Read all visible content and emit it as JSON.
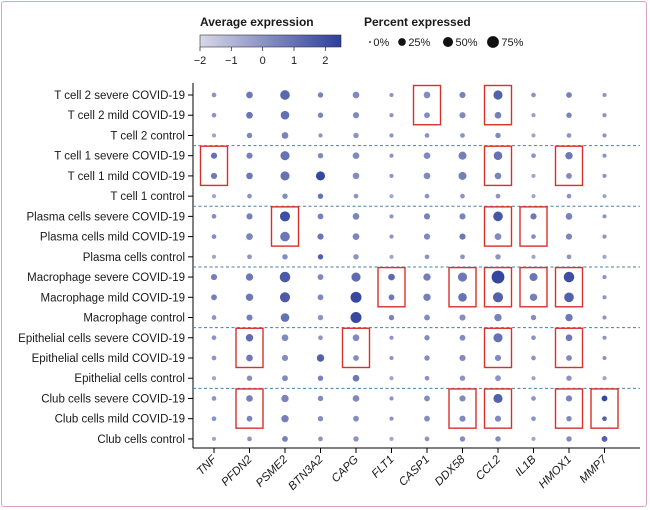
{
  "chart_data": {
    "type": "dot-plot",
    "legend": {
      "color_title": "Average expression",
      "color_ticks": [
        "−2",
        "−1",
        "0",
        "1",
        "2"
      ],
      "color_range": [
        -2,
        2.5
      ],
      "color_low": "#d8d8e8",
      "color_high": "#2c3f9a",
      "size_title": "Percent expressed",
      "size_items": [
        {
          "label": "0%",
          "pct": 0
        },
        {
          "label": "25%",
          "pct": 25
        },
        {
          "label": "50%",
          "pct": 50
        },
        {
          "label": "75%",
          "pct": 75
        }
      ]
    },
    "genes": [
      "TNF",
      "PFDN2",
      "PSME2",
      "BTN3A2",
      "CAPG",
      "FLT1",
      "CASP1",
      "DDX58",
      "CCL2",
      "IL1B",
      "HMOX1",
      "MMP7"
    ],
    "rows": [
      "T cell 2 severe COVID-19",
      "T cell 2 mild COVID-19",
      "T cell 2 control",
      "T cell 1 severe COVID-19",
      "T cell 1 mild COVID-19",
      "T cell 1 control",
      "Plasma cells severe COVID-19",
      "Plasma cells mild COVID-19",
      "Plasma cells control",
      "Macrophage severe COVID-19",
      "Macrophage mild COVID-19",
      "Macrophage control",
      "Epithelial cells severe COVID-19",
      "Epithelial cells mild COVID-19",
      "Epithelial cells control",
      "Club cells severe COVID-19",
      "Club cells mild COVID-19",
      "Club cells control"
    ],
    "pct_expressed": [
      [
        5,
        15,
        40,
        8,
        15,
        3,
        15,
        12,
        35,
        5,
        10,
        3
      ],
      [
        5,
        15,
        30,
        8,
        12,
        3,
        10,
        12,
        15,
        3,
        8,
        3
      ],
      [
        3,
        8,
        15,
        3,
        8,
        3,
        5,
        5,
        8,
        3,
        5,
        3
      ],
      [
        12,
        12,
        35,
        8,
        15,
        3,
        15,
        25,
        30,
        5,
        20,
        3
      ],
      [
        12,
        15,
        35,
        35,
        15,
        3,
        15,
        25,
        15,
        3,
        10,
        3
      ],
      [
        3,
        5,
        8,
        8,
        5,
        3,
        5,
        5,
        5,
        3,
        5,
        3
      ],
      [
        5,
        12,
        45,
        10,
        15,
        3,
        12,
        12,
        40,
        12,
        15,
        3
      ],
      [
        5,
        15,
        40,
        12,
        15,
        3,
        12,
        12,
        15,
        5,
        12,
        3
      ],
      [
        3,
        5,
        8,
        8,
        8,
        3,
        5,
        5,
        8,
        3,
        5,
        3
      ],
      [
        12,
        20,
        50,
        10,
        35,
        15,
        20,
        35,
        80,
        25,
        50,
        3
      ],
      [
        10,
        20,
        45,
        10,
        55,
        10,
        20,
        30,
        45,
        20,
        40,
        3
      ],
      [
        5,
        12,
        30,
        8,
        55,
        8,
        10,
        12,
        20,
        8,
        20,
        3
      ],
      [
        5,
        20,
        15,
        5,
        15,
        3,
        8,
        10,
        35,
        5,
        15,
        3
      ],
      [
        5,
        15,
        12,
        20,
        10,
        3,
        8,
        12,
        12,
        5,
        10,
        3
      ],
      [
        3,
        8,
        10,
        8,
        15,
        3,
        5,
        8,
        10,
        3,
        8,
        3
      ],
      [
        5,
        15,
        20,
        8,
        15,
        3,
        10,
        12,
        35,
        5,
        12,
        10
      ],
      [
        5,
        10,
        20,
        8,
        10,
        3,
        10,
        12,
        12,
        5,
        8,
        5
      ],
      [
        3,
        5,
        10,
        5,
        8,
        3,
        5,
        8,
        8,
        3,
        8,
        10
      ]
    ],
    "avg_expression": [
      [
        0.0,
        0.8,
        1.3,
        0.5,
        0.3,
        0.0,
        0.2,
        0.5,
        1.5,
        0.0,
        0.5,
        0.0
      ],
      [
        0.0,
        0.9,
        1.1,
        0.4,
        0.3,
        0.0,
        0.2,
        0.3,
        0.6,
        -0.3,
        0.5,
        0.0
      ],
      [
        -0.5,
        0.4,
        0.5,
        0.0,
        0.0,
        0.0,
        0.0,
        0.0,
        0.3,
        -0.5,
        0.0,
        0.0
      ],
      [
        1.0,
        0.6,
        1.0,
        0.3,
        0.3,
        0.0,
        0.3,
        0.6,
        1.0,
        0.0,
        0.8,
        0.0
      ],
      [
        0.8,
        0.8,
        1.0,
        2.2,
        0.2,
        0.0,
        0.3,
        0.6,
        0.5,
        -0.5,
        0.3,
        0.0
      ],
      [
        -0.5,
        0.0,
        0.2,
        1.0,
        0.0,
        -0.5,
        0.0,
        0.0,
        0.0,
        -0.5,
        0.0,
        -0.5
      ],
      [
        0.2,
        0.6,
        2.0,
        0.6,
        0.4,
        0.0,
        0.5,
        0.5,
        1.8,
        0.8,
        0.5,
        0.0
      ],
      [
        0.2,
        0.4,
        0.8,
        0.9,
        0.4,
        0.0,
        0.3,
        0.8,
        0.3,
        0.2,
        0.4,
        0.0
      ],
      [
        -0.5,
        0.0,
        0.2,
        1.5,
        0.0,
        -0.5,
        0.0,
        0.0,
        0.0,
        -0.5,
        0.0,
        -0.5
      ],
      [
        0.6,
        0.8,
        1.7,
        0.3,
        1.2,
        1.2,
        0.6,
        0.8,
        2.3,
        0.9,
        2.0,
        0.0
      ],
      [
        0.6,
        0.8,
        1.7,
        0.3,
        2.2,
        0.8,
        0.6,
        1.0,
        1.5,
        0.6,
        1.5,
        0.0
      ],
      [
        0.0,
        0.6,
        1.0,
        0.0,
        2.2,
        0.5,
        0.2,
        0.2,
        0.5,
        0.2,
        0.8,
        0.0
      ],
      [
        0.0,
        1.2,
        0.3,
        0.0,
        0.3,
        0.0,
        0.2,
        0.3,
        1.0,
        0.0,
        0.8,
        0.0
      ],
      [
        0.0,
        0.8,
        0.2,
        1.5,
        0.2,
        0.0,
        0.2,
        0.3,
        0.3,
        0.0,
        0.3,
        0.0
      ],
      [
        -0.5,
        0.2,
        0.3,
        0.5,
        0.8,
        -0.5,
        0.0,
        0.0,
        0.0,
        -0.5,
        0.0,
        -0.5
      ],
      [
        0.0,
        0.6,
        0.4,
        0.3,
        0.3,
        0.0,
        0.2,
        0.3,
        1.5,
        0.0,
        0.5,
        2.2
      ],
      [
        0.0,
        0.4,
        0.6,
        0.2,
        0.2,
        0.0,
        0.2,
        0.3,
        0.3,
        0.0,
        0.3,
        1.5
      ],
      [
        -0.5,
        0.0,
        0.5,
        0.0,
        0.0,
        -0.5,
        0.0,
        0.2,
        0.2,
        -0.5,
        0.3,
        1.5
      ]
    ],
    "group_separators_after_rows": [
      2,
      5,
      8,
      11,
      14
    ],
    "highlight_boxes": [
      {
        "col": 6,
        "row_start": 0,
        "row_end": 1
      },
      {
        "col": 8,
        "row_start": 0,
        "row_end": 1
      },
      {
        "col": 0,
        "row_start": 3,
        "row_end": 4
      },
      {
        "col": 8,
        "row_start": 3,
        "row_end": 4
      },
      {
        "col": 10,
        "row_start": 3,
        "row_end": 4
      },
      {
        "col": 2,
        "row_start": 6,
        "row_end": 7
      },
      {
        "col": 8,
        "row_start": 6,
        "row_end": 7
      },
      {
        "col": 9,
        "row_start": 6,
        "row_end": 7
      },
      {
        "col": 5,
        "row_start": 9,
        "row_end": 10
      },
      {
        "col": 7,
        "row_start": 9,
        "row_end": 10
      },
      {
        "col": 8,
        "row_start": 9,
        "row_end": 10
      },
      {
        "col": 9,
        "row_start": 9,
        "row_end": 10
      },
      {
        "col": 10,
        "row_start": 9,
        "row_end": 10
      },
      {
        "col": 1,
        "row_start": 12,
        "row_end": 13
      },
      {
        "col": 4,
        "row_start": 12,
        "row_end": 13
      },
      {
        "col": 8,
        "row_start": 12,
        "row_end": 13
      },
      {
        "col": 10,
        "row_start": 12,
        "row_end": 13
      },
      {
        "col": 1,
        "row_start": 15,
        "row_end": 16
      },
      {
        "col": 7,
        "row_start": 15,
        "row_end": 16
      },
      {
        "col": 8,
        "row_start": 15,
        "row_end": 16
      },
      {
        "col": 10,
        "row_start": 15,
        "row_end": 16
      },
      {
        "col": 11,
        "row_start": 15,
        "row_end": 16
      }
    ],
    "box_color": "#d9302c",
    "separator_color": "#4a7fa8"
  }
}
